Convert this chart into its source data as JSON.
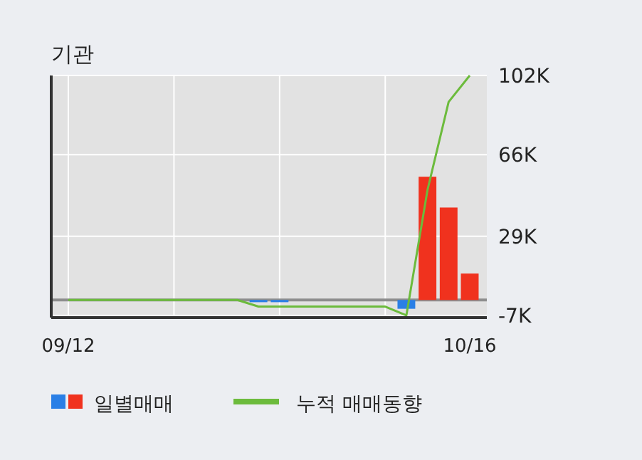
{
  "chart_data": {
    "type": "bar",
    "title": "기관",
    "categories": [
      "09/12",
      null,
      null,
      null,
      null,
      null,
      null,
      null,
      null,
      null,
      null,
      null,
      null,
      null,
      null,
      null,
      null,
      null,
      null,
      "10/16"
    ],
    "series": [
      {
        "name": "일별매매",
        "colors": [
          "#f0321e",
          "#f0321e",
          "#f0321e",
          "#f0321e",
          "#f0321e",
          "#f0321e",
          "#f0321e",
          "#f0321e",
          "#f0321e",
          "#2a7fe6",
          "#2a7fe6",
          "#f0321e",
          "#f0321e",
          "#f0321e",
          "#f0321e",
          "#f0321e",
          "#2a7fe6",
          "#f0321e",
          "#f0321e",
          "#f0321e"
        ],
        "values": [
          0,
          0,
          0,
          0,
          0,
          0,
          0,
          0,
          0,
          -1,
          -1,
          0,
          0,
          0,
          0,
          0,
          -4,
          56,
          42,
          12
        ]
      },
      {
        "name": "누적 매매동향",
        "type": "line",
        "color": "#6cbb3c",
        "values": [
          0,
          0,
          0,
          0,
          0,
          0,
          0,
          0,
          0,
          -3,
          -3,
          -3,
          -3,
          -3,
          -3,
          -3,
          -7,
          50,
          90,
          102
        ]
      }
    ],
    "ylim": [
      -8,
      102
    ],
    "yticks": [
      {
        "value": -7,
        "label": "-7K"
      },
      {
        "value": 29,
        "label": "29K"
      },
      {
        "value": 66,
        "label": "66K"
      },
      {
        "value": 102,
        "label": "102K"
      }
    ],
    "ref_lines": [
      {
        "axis": "y",
        "value": 0,
        "color": "#8e8e8e"
      }
    ],
    "grid": true,
    "legend": "bottom"
  }
}
